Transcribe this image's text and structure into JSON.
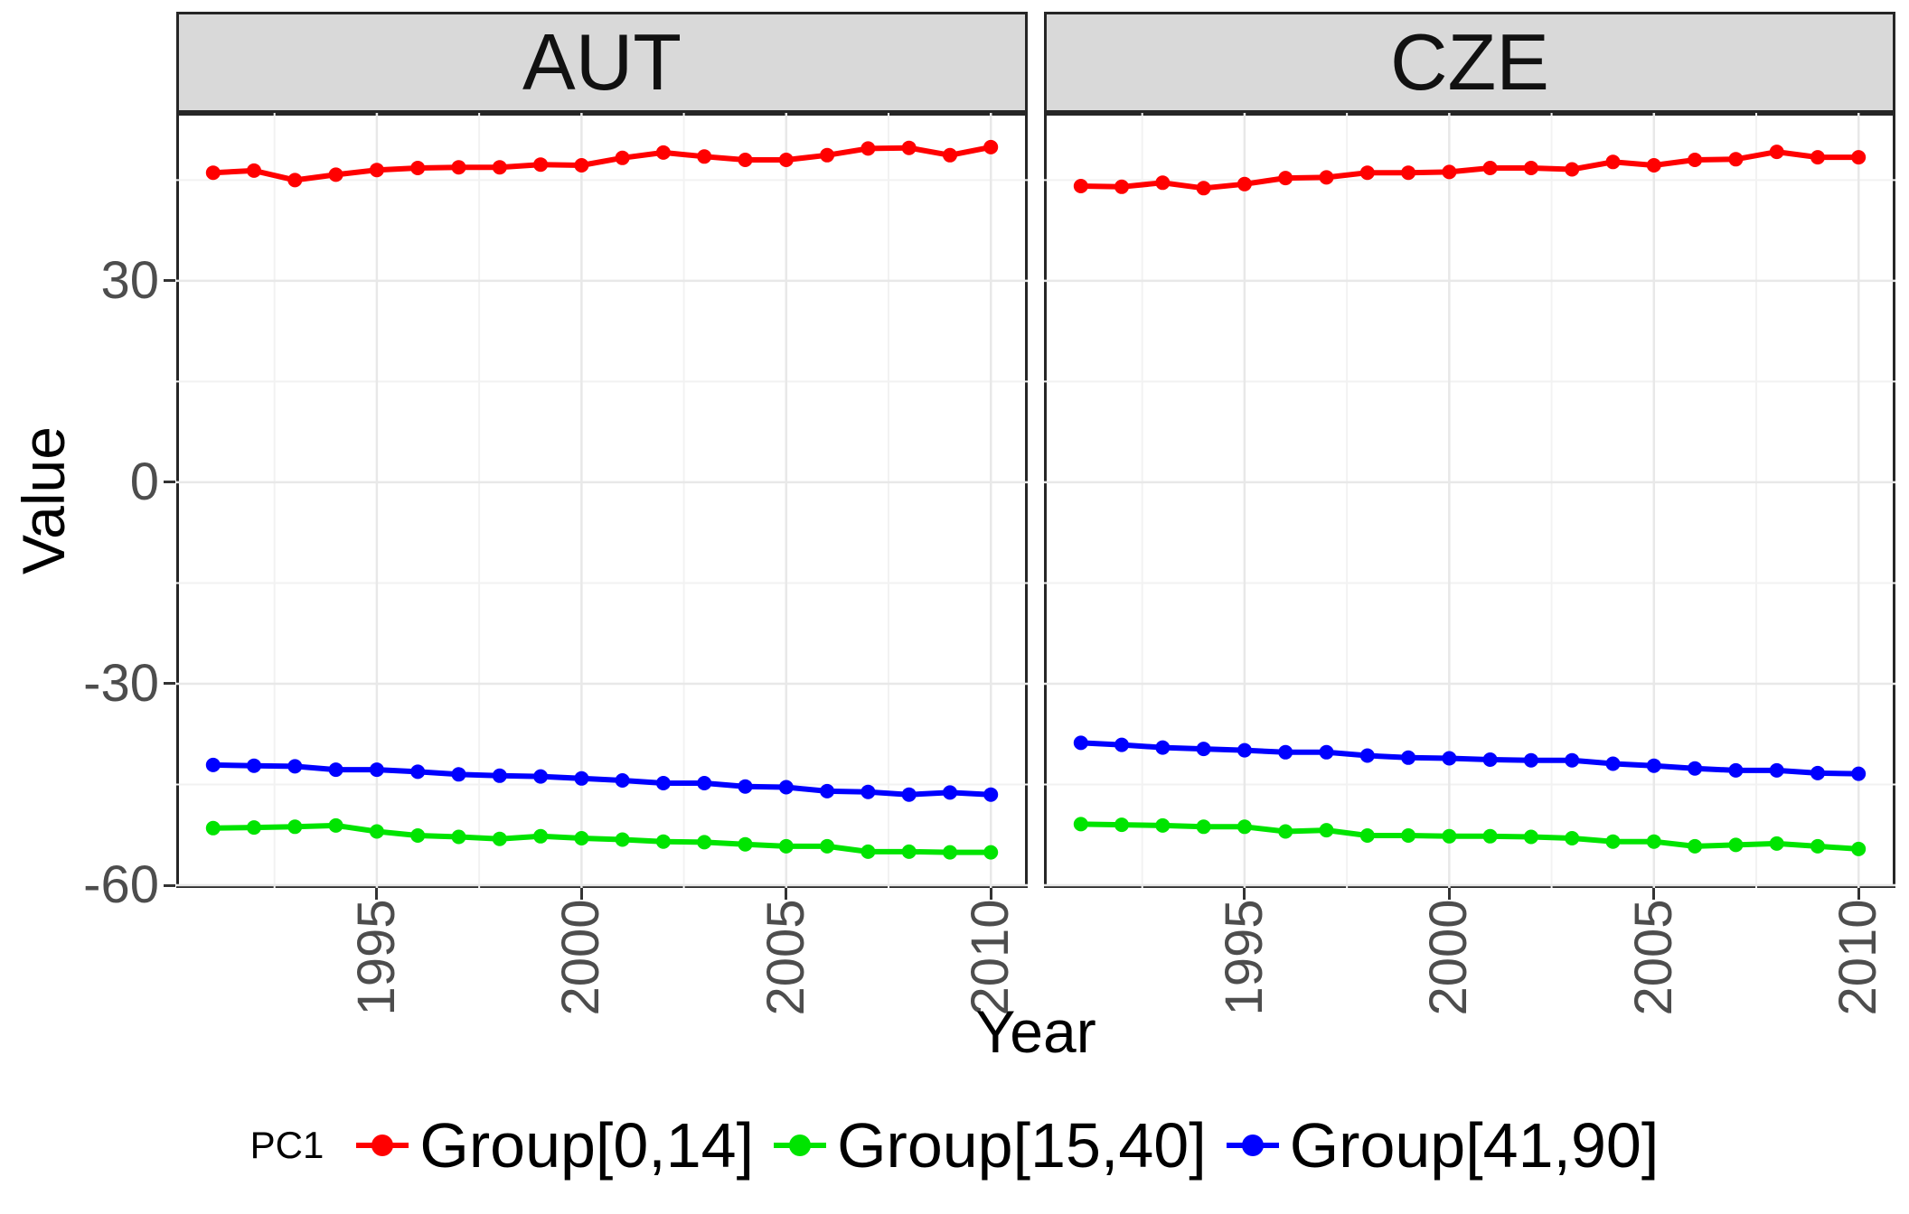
{
  "chart_data": {
    "type": "line",
    "xlabel": "Year",
    "ylabel": "Value",
    "x": [
      1991,
      1992,
      1993,
      1994,
      1995,
      1996,
      1997,
      1998,
      1999,
      2000,
      2001,
      2002,
      2003,
      2004,
      2005,
      2006,
      2007,
      2008,
      2009,
      2010
    ],
    "xlim": [
      1990.1,
      2010.9
    ],
    "ylim": [
      -60.4,
      55.0
    ],
    "x_ticks": [
      1995,
      2000,
      2005,
      2010
    ],
    "x_tick_labels": [
      "1995",
      "2000",
      "2005",
      "2010"
    ],
    "x_minor": [
      1992.5,
      1997.5,
      2002.5,
      2007.5
    ],
    "y_ticks": [
      30,
      0,
      -30,
      -60
    ],
    "y_tick_labels": [
      "30",
      "0",
      "-30",
      "-60"
    ],
    "y_minor": [
      45,
      15,
      -15,
      -45
    ],
    "grid": "on",
    "legend": {
      "title": "PC1",
      "position": "bottom",
      "entries": [
        {
          "label": "Group[0,14]",
          "color": "#ff0000"
        },
        {
          "label": "Group[15,40]",
          "color": "#00e400"
        },
        {
          "label": "Group[41,90]",
          "color": "#0000ff"
        }
      ]
    },
    "facets": [
      {
        "label": "AUT",
        "series": [
          {
            "name": "Group[0,14]",
            "values": [
              46.1,
              46.4,
              45.0,
              45.8,
              46.5,
              46.8,
              46.9,
              46.9,
              47.3,
              47.2,
              48.3,
              49.1,
              48.5,
              48.0,
              48.0,
              48.7,
              49.7,
              49.8,
              48.7,
              49.9
            ]
          },
          {
            "name": "Group[15,40]",
            "values": [
              -51.5,
              -51.4,
              -51.3,
              -51.1,
              -52.0,
              -52.6,
              -52.8,
              -53.1,
              -52.7,
              -53.0,
              -53.2,
              -53.5,
              -53.6,
              -53.9,
              -54.2,
              -54.2,
              -55.0,
              -55.0,
              -55.1,
              -55.1
            ]
          },
          {
            "name": "Group[41,90]",
            "values": [
              -42.1,
              -42.2,
              -42.3,
              -42.8,
              -42.8,
              -43.1,
              -43.5,
              -43.7,
              -43.8,
              -44.1,
              -44.4,
              -44.8,
              -44.8,
              -45.3,
              -45.4,
              -46.0,
              -46.1,
              -46.5,
              -46.2,
              -46.5
            ]
          }
        ]
      },
      {
        "label": "CZE",
        "series": [
          {
            "name": "Group[0,14]",
            "values": [
              44.1,
              44.0,
              44.6,
              43.8,
              44.4,
              45.3,
              45.4,
              46.1,
              46.1,
              46.2,
              46.8,
              46.8,
              46.6,
              47.7,
              47.2,
              48.0,
              48.1,
              49.2,
              48.4,
              48.4
            ]
          },
          {
            "name": "Group[15,40]",
            "values": [
              -50.9,
              -51.0,
              -51.1,
              -51.3,
              -51.3,
              -52.0,
              -51.8,
              -52.6,
              -52.6,
              -52.7,
              -52.7,
              -52.8,
              -53.0,
              -53.5,
              -53.5,
              -54.2,
              -54.0,
              -53.8,
              -54.2,
              -54.6
            ]
          },
          {
            "name": "Group[41,90]",
            "values": [
              -38.8,
              -39.1,
              -39.5,
              -39.7,
              -39.9,
              -40.2,
              -40.2,
              -40.7,
              -41.0,
              -41.1,
              -41.3,
              -41.4,
              -41.4,
              -41.9,
              -42.2,
              -42.6,
              -42.9,
              -42.9,
              -43.3,
              -43.4
            ]
          }
        ]
      }
    ],
    "style": {
      "strip_bg": "#d9d9d9",
      "panel_border": "#262626",
      "grid_major": "#e8e8e8",
      "grid_minor": "#f2f2f2",
      "axis_text": "#4d4d4d",
      "line_width": 6,
      "point_radius": 8
    }
  }
}
